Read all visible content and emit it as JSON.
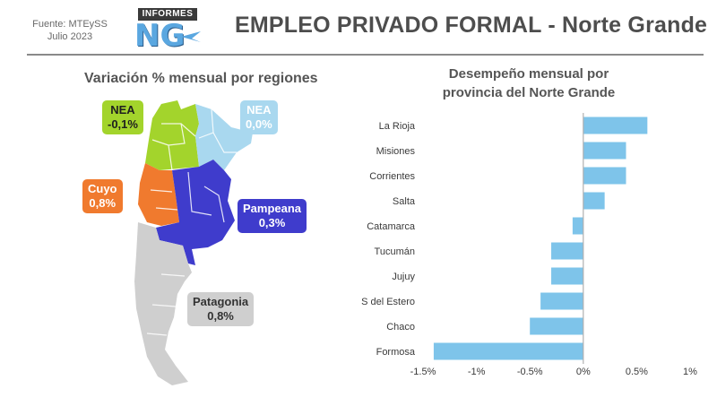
{
  "header": {
    "source_line1": "Fuente: MTEySS",
    "source_line2": "Julio 2023",
    "logo_top": "INFORMES",
    "logo_mark": "NG",
    "title": "EMPLEO PRIVADO FORMAL - Norte Grande"
  },
  "map": {
    "title": "Variación % mensual por regiones",
    "regions": [
      {
        "name": "NEA",
        "value": "-0,1%",
        "color": "#a3d42c",
        "text_color": "#1f1f1f"
      },
      {
        "name": "NEA",
        "value": "0,0%",
        "color": "#a9d8ef",
        "text_color": "#ffffff"
      },
      {
        "name": "Cuyo",
        "value": "0,8%",
        "color": "#f07a2e",
        "text_color": "#ffffff"
      },
      {
        "name": "Pampeana",
        "value": "0,3%",
        "color": "#3f3ccc",
        "text_color": "#ffffff"
      },
      {
        "name": "Patagonia",
        "value": "0,8%",
        "color": "#cfcfcf",
        "text_color": "#333333"
      }
    ]
  },
  "chart_data": {
    "type": "bar",
    "orientation": "horizontal",
    "title": "Desempeño mensual por provincia del Norte Grande",
    "categories": [
      "La Rioja",
      "Misiones",
      "Corrientes",
      "Salta",
      "Catamarca",
      "Tucumán",
      "Jujuy",
      "S del Estero",
      "Chaco",
      "Formosa"
    ],
    "values": [
      0.6,
      0.4,
      0.4,
      0.2,
      -0.1,
      -0.3,
      -0.3,
      -0.4,
      -0.5,
      -1.4
    ],
    "xlim": [
      -1.5,
      1.0
    ],
    "xticks": [
      -1.5,
      -1.0,
      -0.5,
      0,
      0.5,
      1.0
    ],
    "xtick_labels": [
      "-1.5%",
      "-1%",
      "-0.5%",
      "0%",
      "0.5%",
      "1%"
    ],
    "bar_color": "#7ec4ea",
    "axis_color": "#b0b0b0",
    "grid": false,
    "legend": "none"
  }
}
